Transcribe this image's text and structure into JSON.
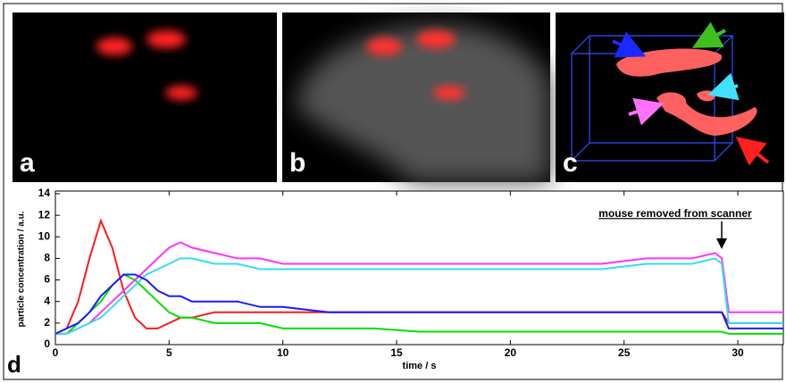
{
  "panels": {
    "a": "a",
    "b": "b",
    "c": "c",
    "d": "d"
  },
  "chart_data": {
    "type": "line",
    "xlabel": "time / s",
    "ylabel": "particle concentration / a.u.",
    "annotation": "mouse removed from scanner",
    "xlim": [
      0,
      32
    ],
    "ylim": [
      0,
      14
    ],
    "xticks": [
      0,
      5,
      10,
      15,
      20,
      25,
      30
    ],
    "yticks": [
      0,
      2,
      4,
      6,
      8,
      10,
      12,
      14
    ],
    "x": [
      0,
      0.5,
      1,
      1.5,
      2,
      2.5,
      3,
      3.5,
      4,
      4.5,
      5,
      5.5,
      6,
      7,
      8,
      9,
      10,
      12,
      14,
      16,
      18,
      20,
      22,
      24,
      26,
      28,
      29,
      29.3,
      29.6,
      30,
      31,
      32
    ],
    "series": [
      {
        "color": "#ff1a1a",
        "values": [
          1,
          1.5,
          4,
          8,
          11.5,
          9,
          5,
          2.5,
          1.5,
          1.5,
          2,
          2.5,
          2.5,
          3,
          3,
          3,
          3,
          3,
          3,
          3,
          3,
          3,
          3,
          3,
          3,
          3,
          3,
          3,
          2,
          2,
          2,
          2
        ]
      },
      {
        "color": "#00e000",
        "values": [
          1,
          1,
          2,
          3,
          4,
          5.5,
          6.5,
          6,
          5,
          4,
          3,
          2.5,
          2.5,
          2,
          2,
          2,
          1.5,
          1.5,
          1.5,
          1.2,
          1.2,
          1.2,
          1.2,
          1.2,
          1.2,
          1.2,
          1.2,
          1.2,
          1,
          1,
          1,
          1
        ]
      },
      {
        "color": "#ff33ff",
        "values": [
          1,
          1,
          1.5,
          2,
          3,
          4,
          5,
          6,
          7,
          8,
          9,
          9.5,
          9,
          8.5,
          8,
          8,
          7.5,
          7.5,
          7.5,
          7.5,
          7.5,
          7.5,
          7.5,
          7.5,
          8,
          8,
          8.5,
          8,
          3,
          3,
          3,
          3
        ]
      },
      {
        "color": "#33ddee",
        "values": [
          1,
          1,
          1.5,
          2,
          2.5,
          3.5,
          4.5,
          5.5,
          6.5,
          7,
          7.5,
          8,
          8,
          7.5,
          7.5,
          7,
          7,
          7,
          7,
          7,
          7,
          7,
          7,
          7,
          7.5,
          7.5,
          8,
          7.5,
          2,
          2,
          2,
          2
        ]
      },
      {
        "color": "#1a1aff",
        "values": [
          1,
          1.5,
          2,
          3,
          4.5,
          5.5,
          6.5,
          6.5,
          6,
          5,
          4.5,
          4.5,
          4,
          4,
          4,
          3.5,
          3.5,
          3,
          3,
          3,
          3,
          3,
          3,
          3,
          3,
          3,
          3,
          3,
          1.5,
          1.5,
          1.5,
          1.5
        ]
      }
    ]
  }
}
